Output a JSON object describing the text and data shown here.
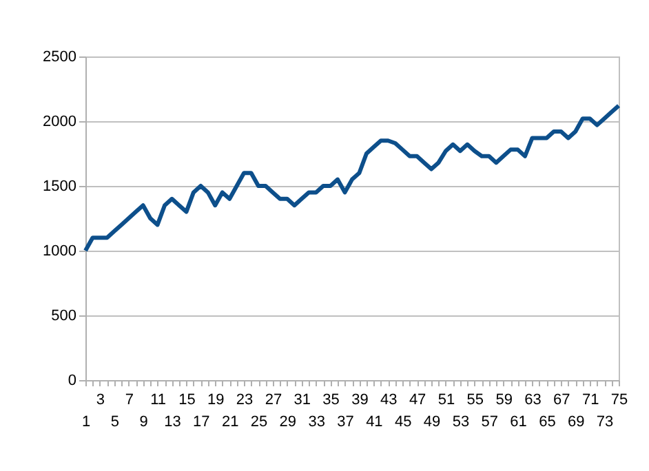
{
  "chart_data": {
    "type": "line",
    "categories": [
      "1",
      null,
      "3",
      null,
      "5",
      null,
      "7",
      null,
      "9",
      null,
      "11",
      null,
      "13",
      null,
      "15",
      null,
      "17",
      null,
      "19",
      null,
      "21",
      null,
      "23",
      null,
      "25",
      null,
      "27",
      null,
      "29",
      null,
      "31",
      null,
      "33",
      null,
      "35",
      null,
      "37",
      null,
      "39",
      null,
      "41",
      null,
      "43",
      null,
      "45",
      null,
      "47",
      null,
      "49",
      null,
      "51",
      null,
      "53",
      null,
      "55",
      null,
      "57",
      null,
      "59",
      null,
      "61",
      null,
      "63",
      null,
      "65",
      null,
      "67",
      null,
      "69",
      null,
      "71",
      null,
      "73",
      null,
      "75"
    ],
    "series": [
      {
        "color": "#0d4f8b",
        "values": [
          1000,
          1100,
          1100,
          1100,
          1150,
          1200,
          1250,
          1300,
          1350,
          1250,
          1200,
          1350,
          1400,
          1350,
          1300,
          1450,
          1500,
          1450,
          1350,
          1450,
          1400,
          1500,
          1600,
          1600,
          1500,
          1500,
          1450,
          1400,
          1400,
          1350,
          1400,
          1450,
          1450,
          1500,
          1500,
          1550,
          1450,
          1550,
          1600,
          1750,
          1800,
          1850,
          1850,
          1830,
          1780,
          1730,
          1730,
          1680,
          1630,
          1680,
          1770,
          1820,
          1770,
          1820,
          1770,
          1730,
          1730,
          1680,
          1730,
          1780,
          1780,
          1730,
          1870,
          1870,
          1870,
          1920,
          1920,
          1870,
          1920,
          2020,
          2020,
          1970,
          2020,
          2070,
          2120
        ]
      }
    ],
    "ylim": [
      0,
      2500
    ],
    "yticks": [
      0,
      500,
      1000,
      1500,
      2000,
      2500
    ],
    "grid": "y",
    "marker": "none",
    "line_style": "solid"
  }
}
